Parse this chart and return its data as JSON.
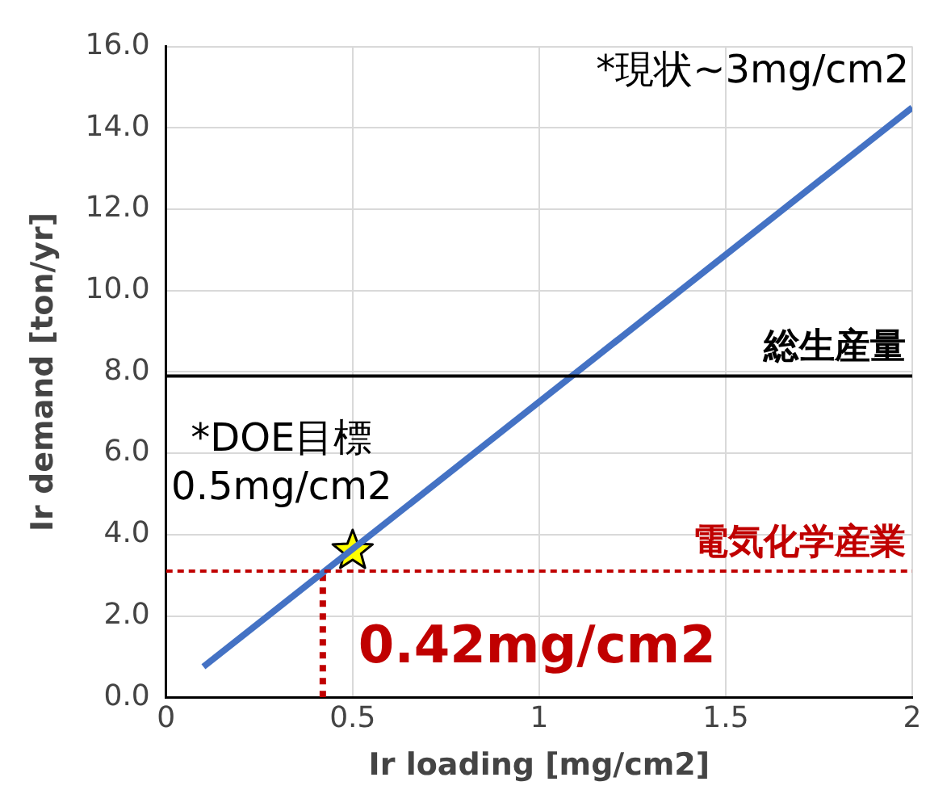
{
  "chart_data": {
    "type": "line",
    "xlabel": "Ir loading [mg/cm2]",
    "ylabel": "Ir demand [ton/yr]",
    "xlim": [
      0,
      2
    ],
    "xticks": [
      0,
      0.5,
      1,
      1.5,
      2
    ],
    "ylim": [
      0,
      16
    ],
    "yticks": [
      {
        "value": 0,
        "label": "0.0"
      },
      {
        "value": 2,
        "label": "2.0"
      },
      {
        "value": 4,
        "label": "4.0"
      },
      {
        "value": 6,
        "label": "6.0"
      },
      {
        "value": 8,
        "label": "8.0"
      },
      {
        "value": 10,
        "label": "10.0"
      },
      {
        "value": 12,
        "label": "12.0"
      },
      {
        "value": 14,
        "label": "14.0"
      },
      {
        "value": 16,
        "label": "16.0"
      }
    ],
    "grid": true,
    "legend": false,
    "series": [
      {
        "type": "line",
        "color": "#4472c4",
        "x": [
          0.1,
          2
        ],
        "values": [
          0.75,
          14.5
        ],
        "line_style": "solid",
        "marker": "none"
      },
      {
        "type": "line",
        "color": "#c00000",
        "x": [
          0.42,
          0.42
        ],
        "values": [
          0,
          3.1
        ],
        "line_style": "dotted",
        "marker": "none"
      },
      {
        "type": "scatter",
        "color": "#ffff00",
        "x": [
          0.5
        ],
        "values": [
          3.6
        ],
        "marker": "star"
      }
    ],
    "ref_lines": [
      {
        "axis": "y",
        "value": 7.9,
        "label": "総生産量",
        "color": "#000000",
        "line_style": "solid"
      },
      {
        "axis": "y",
        "value": 3.1,
        "label": "電気化学産業",
        "color": "#c00000",
        "line_style": "dashed"
      }
    ],
    "annotations": [
      {
        "text": "*現状~3mg/cm2",
        "x": 2,
        "y": 14.5
      },
      {
        "text": "*DOE目標\n0.5mg/cm2",
        "x": 0.5,
        "y": 3.6
      },
      {
        "text": "0.42mg/cm2",
        "x": 0.42,
        "y": 0
      }
    ]
  }
}
